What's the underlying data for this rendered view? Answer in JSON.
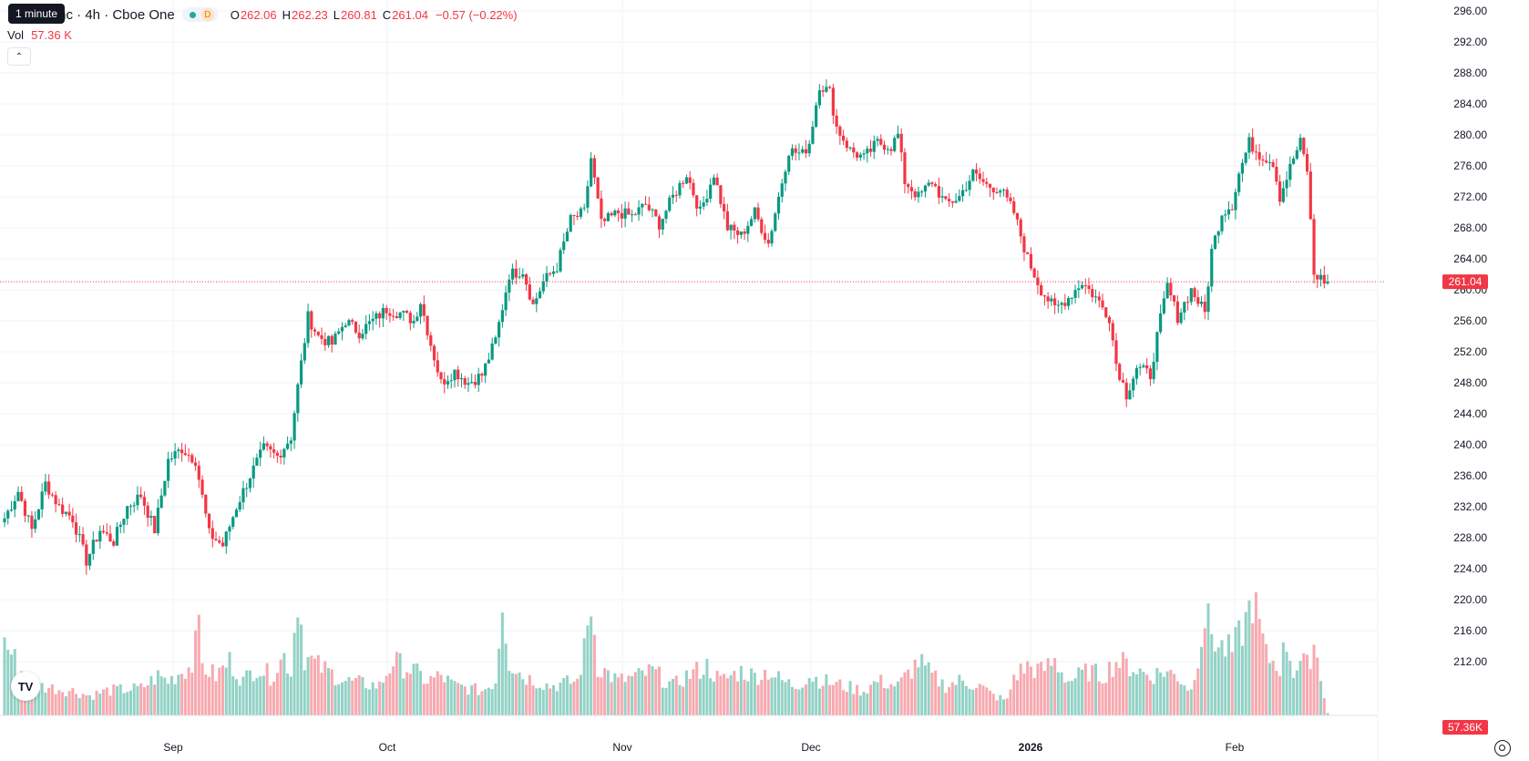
{
  "tooltip": "1 minute",
  "legend": {
    "symbol": "Inc · 4h · Cboe One",
    "interval_badge": "D",
    "open_label": "O",
    "open": "262.06",
    "high_label": "H",
    "high": "262.23",
    "low_label": "L",
    "low": "260.81",
    "close_label": "C",
    "close": "261.04",
    "change": "−0.57 (−0.22%)",
    "vol_label": "Vol",
    "vol_value": "57.36 K"
  },
  "colors": {
    "up": "#089981",
    "down": "#f23645",
    "vol_up": "#93d2c6",
    "vol_down": "#f7a9af",
    "grid": "#f0f3fa"
  },
  "icons": {
    "logo": "tradingview-logo-icon",
    "settings": "settings-gear-icon",
    "collapse": "chevron-up-icon"
  },
  "chart_data": {
    "type": "candlestick",
    "interval": "4h",
    "y_axis": {
      "min": 210,
      "max": 298,
      "ticks": [
        212,
        216,
        220,
        224,
        228,
        232,
        236,
        240,
        244,
        248,
        252,
        256,
        260,
        264,
        268,
        272,
        276,
        280,
        284,
        288,
        292,
        296
      ]
    },
    "x_axis": {
      "labels": [
        "Sep",
        "Oct",
        "Nov",
        "Dec",
        "2026",
        "Feb"
      ]
    },
    "last_price": "261.04",
    "last_volume": "57.36K",
    "anchors": [
      [
        0,
        230.5
      ],
      [
        4,
        234.0
      ],
      [
        8,
        229.0
      ],
      [
        12,
        235.0
      ],
      [
        16,
        232.0
      ],
      [
        20,
        230.5
      ],
      [
        24,
        225.0
      ],
      [
        28,
        229.0
      ],
      [
        32,
        227.5
      ],
      [
        36,
        232.0
      ],
      [
        40,
        233.5
      ],
      [
        44,
        229.0
      ],
      [
        48,
        238.0
      ],
      [
        52,
        239.5
      ],
      [
        56,
        238.0
      ],
      [
        60,
        228.5
      ],
      [
        64,
        227.0
      ],
      [
        68,
        232.0
      ],
      [
        72,
        236.0
      ],
      [
        76,
        239.5
      ],
      [
        80,
        238.5
      ],
      [
        84,
        241.0
      ],
      [
        86,
        247.5
      ],
      [
        89,
        256.5
      ],
      [
        92,
        254.0
      ],
      [
        96,
        253.0
      ],
      [
        100,
        256.0
      ],
      [
        104,
        254.5
      ],
      [
        108,
        256.0
      ],
      [
        112,
        257.5
      ],
      [
        116,
        257.0
      ],
      [
        120,
        256.0
      ],
      [
        122,
        258.5
      ],
      [
        125,
        253.0
      ],
      [
        128,
        248.0
      ],
      [
        132,
        249.5
      ],
      [
        136,
        248.0
      ],
      [
        140,
        249.0
      ],
      [
        144,
        253.5
      ],
      [
        148,
        262.0
      ],
      [
        152,
        262.5
      ],
      [
        155,
        258.0
      ],
      [
        158,
        261.0
      ],
      [
        162,
        263.0
      ],
      [
        166,
        269.0
      ],
      [
        170,
        270.0
      ],
      [
        172,
        277.0
      ],
      [
        175,
        268.5
      ],
      [
        180,
        270.0
      ],
      [
        184,
        269.5
      ],
      [
        188,
        271.0
      ],
      [
        192,
        268.5
      ],
      [
        196,
        272.0
      ],
      [
        200,
        275.0
      ],
      [
        204,
        270.0
      ],
      [
        208,
        275.0
      ],
      [
        212,
        268.0
      ],
      [
        216,
        267.0
      ],
      [
        220,
        270.0
      ],
      [
        224,
        266.0
      ],
      [
        227,
        272.0
      ],
      [
        230,
        278.0
      ],
      [
        234,
        277.5
      ],
      [
        236,
        279.0
      ],
      [
        239,
        286.5
      ],
      [
        242,
        285.5
      ],
      [
        244,
        281.0
      ],
      [
        248,
        278.0
      ],
      [
        252,
        277.0
      ],
      [
        256,
        279.0
      ],
      [
        260,
        278.5
      ],
      [
        262,
        280.0
      ],
      [
        264,
        274.0
      ],
      [
        268,
        272.0
      ],
      [
        272,
        274.0
      ],
      [
        276,
        271.0
      ],
      [
        280,
        272.0
      ],
      [
        284,
        275.0
      ],
      [
        288,
        273.5
      ],
      [
        292,
        273.0
      ],
      [
        296,
        270.0
      ],
      [
        300,
        264.0
      ],
      [
        304,
        260.0
      ],
      [
        308,
        257.5
      ],
      [
        312,
        259.0
      ],
      [
        316,
        261.0
      ],
      [
        320,
        259.0
      ],
      [
        324,
        256.5
      ],
      [
        326,
        250.5
      ],
      [
        329,
        246.5
      ],
      [
        332,
        250.0
      ],
      [
        336,
        249.0
      ],
      [
        338,
        254.0
      ],
      [
        341,
        260.5
      ],
      [
        344,
        256.5
      ],
      [
        348,
        260.0
      ],
      [
        352,
        257.0
      ],
      [
        354,
        265.0
      ],
      [
        357,
        270.0
      ],
      [
        360,
        271.0
      ],
      [
        362,
        275.0
      ],
      [
        365,
        279.0
      ],
      [
        368,
        277.5
      ],
      [
        372,
        276.5
      ],
      [
        374,
        272.0
      ],
      [
        378,
        277.0
      ],
      [
        380,
        279.0
      ],
      [
        382,
        275.5
      ],
      [
        384,
        262.0
      ],
      [
        387,
        261.2
      ],
      [
        388,
        261.04
      ]
    ],
    "volume_anchors": [
      [
        0,
        30
      ],
      [
        5,
        18
      ],
      [
        10,
        12
      ],
      [
        20,
        10
      ],
      [
        25,
        8
      ],
      [
        30,
        10
      ],
      [
        40,
        11
      ],
      [
        45,
        16
      ],
      [
        48,
        14
      ],
      [
        52,
        18
      ],
      [
        55,
        20
      ],
      [
        56,
        46
      ],
      [
        58,
        20
      ],
      [
        62,
        16
      ],
      [
        66,
        22
      ],
      [
        70,
        14
      ],
      [
        74,
        20
      ],
      [
        78,
        16
      ],
      [
        82,
        24
      ],
      [
        84,
        18
      ],
      [
        86,
        50
      ],
      [
        88,
        24
      ],
      [
        92,
        20
      ],
      [
        100,
        14
      ],
      [
        110,
        12
      ],
      [
        114,
        22
      ],
      [
        120,
        18
      ],
      [
        124,
        14
      ],
      [
        128,
        16
      ],
      [
        132,
        12
      ],
      [
        140,
        10
      ],
      [
        144,
        14
      ],
      [
        146,
        48
      ],
      [
        148,
        22
      ],
      [
        152,
        16
      ],
      [
        160,
        12
      ],
      [
        168,
        14
      ],
      [
        170,
        26
      ],
      [
        172,
        46
      ],
      [
        174,
        20
      ],
      [
        180,
        14
      ],
      [
        186,
        16
      ],
      [
        190,
        18
      ],
      [
        196,
        12
      ],
      [
        200,
        16
      ],
      [
        206,
        20
      ],
      [
        210,
        14
      ],
      [
        216,
        18
      ],
      [
        220,
        16
      ],
      [
        224,
        18
      ],
      [
        228,
        14
      ],
      [
        232,
        12
      ],
      [
        236,
        16
      ],
      [
        240,
        14
      ],
      [
        246,
        12
      ],
      [
        252,
        10
      ],
      [
        256,
        14
      ],
      [
        262,
        12
      ],
      [
        268,
        22
      ],
      [
        272,
        16
      ],
      [
        276,
        12
      ],
      [
        280,
        14
      ],
      [
        286,
        12
      ],
      [
        290,
        8
      ],
      [
        294,
        6
      ],
      [
        296,
        16
      ],
      [
        300,
        20
      ],
      [
        304,
        18
      ],
      [
        308,
        22
      ],
      [
        312,
        14
      ],
      [
        318,
        18
      ],
      [
        322,
        16
      ],
      [
        326,
        22
      ],
      [
        330,
        20
      ],
      [
        336,
        16
      ],
      [
        340,
        18
      ],
      [
        344,
        16
      ],
      [
        348,
        10
      ],
      [
        352,
        40
      ],
      [
        356,
        28
      ],
      [
        360,
        26
      ],
      [
        364,
        38
      ],
      [
        366,
        48
      ],
      [
        370,
        24
      ],
      [
        374,
        20
      ],
      [
        376,
        30
      ],
      [
        378,
        18
      ],
      [
        380,
        22
      ],
      [
        382,
        20
      ],
      [
        384,
        30
      ],
      [
        386,
        16
      ],
      [
        388,
        1
      ]
    ]
  }
}
